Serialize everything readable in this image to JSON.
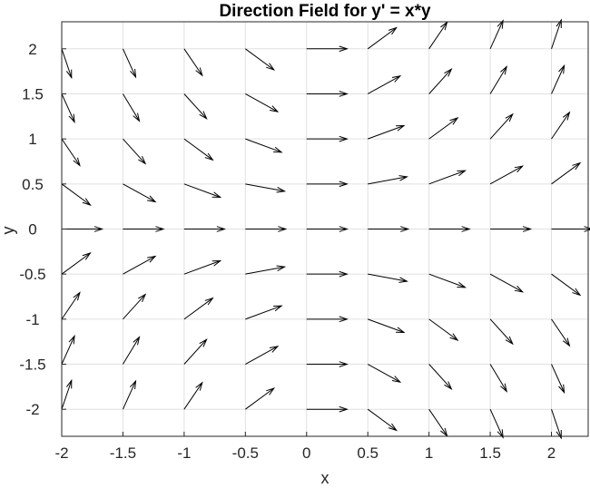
{
  "chart_data": {
    "type": "quiver",
    "title": "Direction Field for y' = x*y",
    "xlabel": "x",
    "ylabel": "y",
    "xlim": [
      -2,
      2.3
    ],
    "ylim": [
      -2.3,
      2.3
    ],
    "xticks": [
      -2,
      -1.5,
      -1,
      -0.5,
      0,
      0.5,
      1,
      1.5,
      2
    ],
    "xtick_labels": [
      "-2",
      "-1.5",
      "-1",
      "-0.5",
      "0",
      "0.5",
      "1",
      "1.5",
      "2"
    ],
    "yticks": [
      2,
      1.5,
      1,
      0.5,
      0,
      -0.5,
      -1,
      -1.5,
      -2
    ],
    "ytick_labels": [
      "2",
      "1.5",
      "1",
      "0.5",
      "0",
      "-0.5",
      "-1",
      "-1.5",
      "-2"
    ],
    "grid": true,
    "x": [
      -2,
      -1.5,
      -1,
      -0.5,
      0,
      0.5,
      1,
      1.5,
      2
    ],
    "y": [
      -2,
      -1.5,
      -1,
      -0.5,
      0,
      0.5,
      1,
      1.5,
      2
    ],
    "slope": "x*y",
    "arrow_color": "#000000",
    "grid_color": "#e0e0e0",
    "axis_color": "#262626"
  }
}
